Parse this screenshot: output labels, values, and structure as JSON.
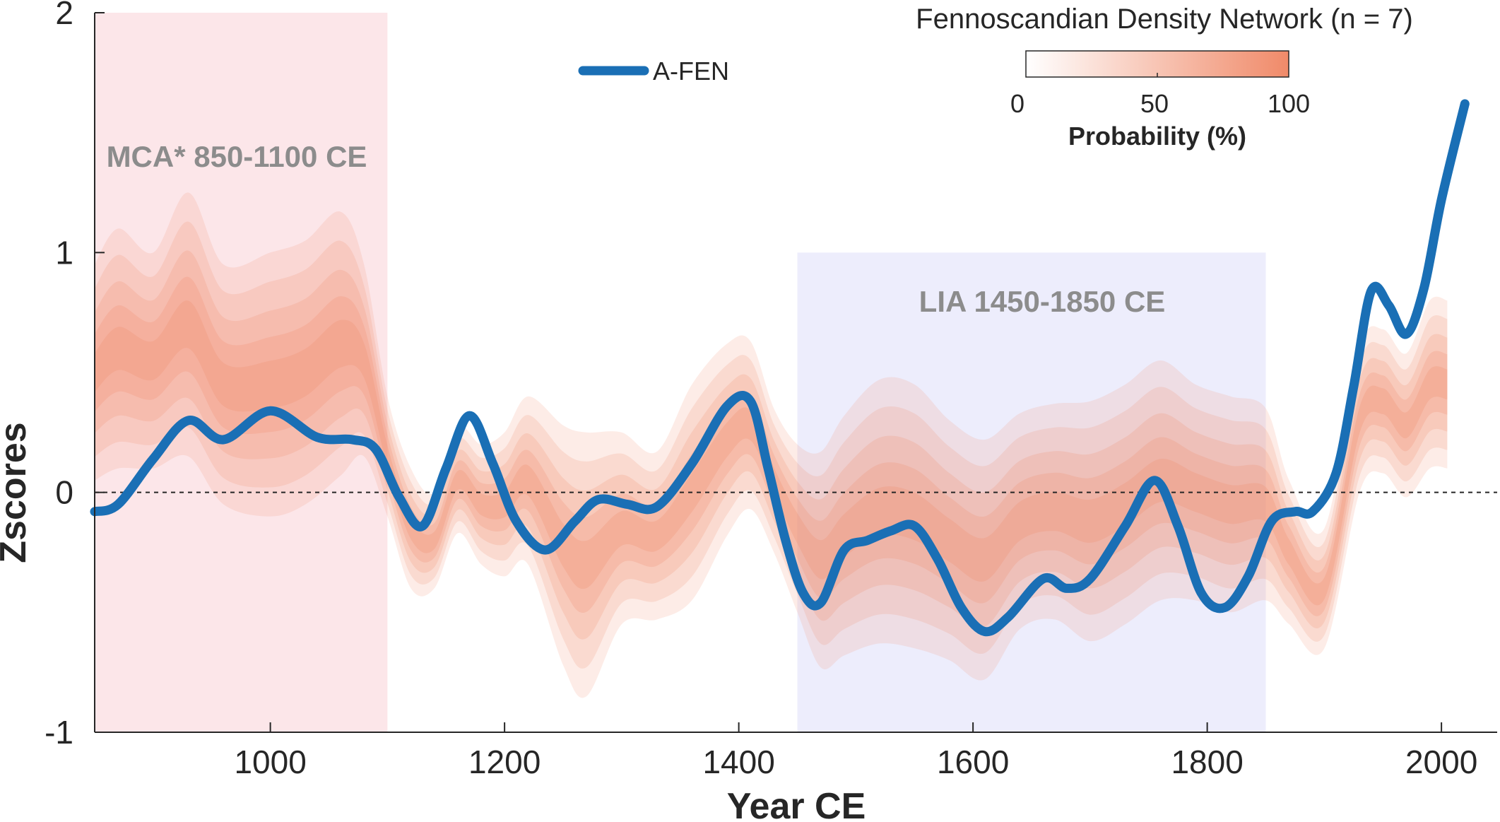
{
  "chart_data": {
    "type": "line",
    "xlabel": "Year CE",
    "ylabel": "Zscores",
    "xlim": [
      850,
      2050
    ],
    "ylim": [
      -1,
      2
    ],
    "x_ticks": [
      1000,
      1200,
      1400,
      1600,
      1800,
      2000
    ],
    "y_ticks": [
      -1,
      0,
      1,
      2
    ],
    "zero_line": "dashed",
    "colors": {
      "series": "#1a6fb5",
      "envelope": "#f08a69",
      "mca_band": "#fbdcdf",
      "lia_band": "#e8e9fb",
      "band_text": "#8c8c8c"
    },
    "bands": [
      {
        "name": "MCA",
        "label": "MCA* 850-1100 CE",
        "start": 850,
        "end": 1100,
        "ymax": 2
      },
      {
        "name": "LIA",
        "label": "LIA 1450-1850 CE",
        "start": 1450,
        "end": 1850,
        "ymax": 1
      }
    ],
    "series": [
      {
        "name": "A-FEN",
        "x": [
          850,
          870,
          900,
          930,
          960,
          1000,
          1040,
          1070,
          1090,
          1110,
          1130,
          1150,
          1170,
          1190,
          1210,
          1235,
          1260,
          1280,
          1305,
          1330,
          1360,
          1390,
          1410,
          1425,
          1440,
          1455,
          1470,
          1490,
          1510,
          1530,
          1550,
          1570,
          1590,
          1610,
          1630,
          1660,
          1680,
          1700,
          1730,
          1755,
          1775,
          1795,
          1815,
          1835,
          1855,
          1875,
          1890,
          1910,
          1925,
          1940,
          1955,
          1970,
          1985,
          2000,
          2020
        ],
        "values": [
          -0.08,
          -0.05,
          0.14,
          0.3,
          0.22,
          0.34,
          0.23,
          0.22,
          0.18,
          -0.02,
          -0.14,
          0.1,
          0.32,
          0.12,
          -0.12,
          -0.24,
          -0.12,
          -0.03,
          -0.05,
          -0.06,
          0.12,
          0.36,
          0.38,
          0.1,
          -0.2,
          -0.42,
          -0.46,
          -0.24,
          -0.2,
          -0.16,
          -0.14,
          -0.28,
          -0.48,
          -0.58,
          -0.52,
          -0.36,
          -0.4,
          -0.36,
          -0.14,
          0.05,
          -0.14,
          -0.42,
          -0.48,
          -0.35,
          -0.12,
          -0.08,
          -0.08,
          0.08,
          0.44,
          0.84,
          0.78,
          0.66,
          0.85,
          1.22,
          1.62
        ]
      }
    ],
    "envelope": {
      "name": "Fennoscandian Density Network (n = 7)",
      "x": [
        850,
        870,
        900,
        930,
        960,
        1000,
        1030,
        1060,
        1080,
        1100,
        1120,
        1140,
        1160,
        1180,
        1200,
        1220,
        1250,
        1270,
        1300,
        1330,
        1360,
        1390,
        1410,
        1430,
        1450,
        1470,
        1490,
        1520,
        1550,
        1580,
        1610,
        1640,
        1670,
        1700,
        1730,
        1760,
        1790,
        1820,
        1850,
        1870,
        1900,
        1930,
        1950,
        1970,
        1990,
        2005
      ],
      "center": [
        0.5,
        0.6,
        0.55,
        0.7,
        0.45,
        0.45,
        0.5,
        0.62,
        0.55,
        0.15,
        -0.15,
        -0.2,
        0.05,
        -0.05,
        -0.05,
        0.05,
        -0.22,
        -0.3,
        -0.15,
        -0.18,
        0.0,
        0.22,
        0.28,
        0.05,
        -0.15,
        -0.28,
        -0.18,
        -0.08,
        -0.1,
        -0.2,
        -0.28,
        -0.12,
        -0.08,
        -0.12,
        -0.05,
        0.05,
        0.0,
        -0.05,
        -0.05,
        -0.25,
        -0.4,
        0.3,
        0.38,
        0.28,
        0.45,
        0.45
      ],
      "spread": [
        0.45,
        0.5,
        0.45,
        0.55,
        0.5,
        0.55,
        0.55,
        0.55,
        0.4,
        0.25,
        0.25,
        0.2,
        0.22,
        0.25,
        0.3,
        0.35,
        0.5,
        0.55,
        0.4,
        0.35,
        0.45,
        0.4,
        0.35,
        0.3,
        0.35,
        0.45,
        0.5,
        0.55,
        0.55,
        0.5,
        0.5,
        0.45,
        0.45,
        0.5,
        0.5,
        0.5,
        0.45,
        0.45,
        0.4,
        0.3,
        0.25,
        0.3,
        0.3,
        0.3,
        0.35,
        0.35
      ]
    },
    "legend": {
      "label": "A-FEN",
      "position": "top-center"
    },
    "colorbar": {
      "title": "Fennoscandian Density Network (n = 7)",
      "ticks": [
        "0",
        "50",
        "100"
      ],
      "label": "Probability (%)",
      "position": "top-right"
    }
  }
}
